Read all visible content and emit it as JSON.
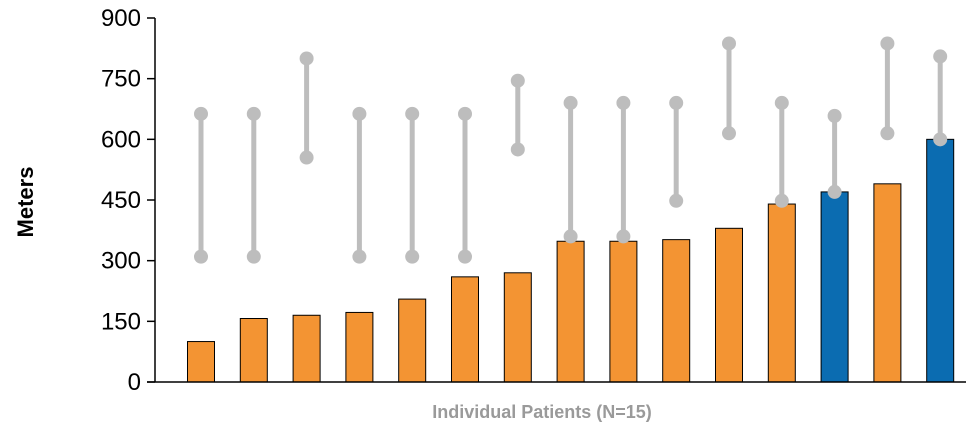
{
  "chart_data": {
    "type": "bar",
    "xlabel": "Individual Patients (N=15)",
    "ylabel": "Meters",
    "ylim": [
      0,
      900
    ],
    "yticks": [
      0,
      150,
      300,
      450,
      600,
      750,
      900
    ],
    "grid": false,
    "legend": "none",
    "colors": {
      "bar_orange": "#F39433",
      "bar_blue": "#0B6CB1",
      "range": "#BDBDBD",
      "axis": "#000000"
    },
    "bars": [
      {
        "value": 100,
        "color_group": "orange"
      },
      {
        "value": 157,
        "color_group": "orange"
      },
      {
        "value": 165,
        "color_group": "orange"
      },
      {
        "value": 172,
        "color_group": "orange"
      },
      {
        "value": 205,
        "color_group": "orange"
      },
      {
        "value": 260,
        "color_group": "orange"
      },
      {
        "value": 270,
        "color_group": "orange"
      },
      {
        "value": 348,
        "color_group": "orange"
      },
      {
        "value": 348,
        "color_group": "orange"
      },
      {
        "value": 352,
        "color_group": "orange"
      },
      {
        "value": 380,
        "color_group": "orange"
      },
      {
        "value": 440,
        "color_group": "orange"
      },
      {
        "value": 470,
        "color_group": "blue"
      },
      {
        "value": 490,
        "color_group": "orange"
      },
      {
        "value": 600,
        "color_group": "blue"
      }
    ],
    "ranges": [
      {
        "low": 310,
        "high": 663
      },
      {
        "low": 310,
        "high": 663
      },
      {
        "low": 555,
        "high": 800
      },
      {
        "low": 310,
        "high": 663
      },
      {
        "low": 310,
        "high": 663
      },
      {
        "low": 310,
        "high": 663
      },
      {
        "low": 575,
        "high": 745
      },
      {
        "low": 360,
        "high": 690
      },
      {
        "low": 360,
        "high": 690
      },
      {
        "low": 448,
        "high": 690
      },
      {
        "low": 615,
        "high": 837
      },
      {
        "low": 448,
        "high": 690
      },
      {
        "low": 470,
        "high": 658
      },
      {
        "low": 615,
        "high": 837
      },
      {
        "low": 600,
        "high": 805
      }
    ]
  }
}
